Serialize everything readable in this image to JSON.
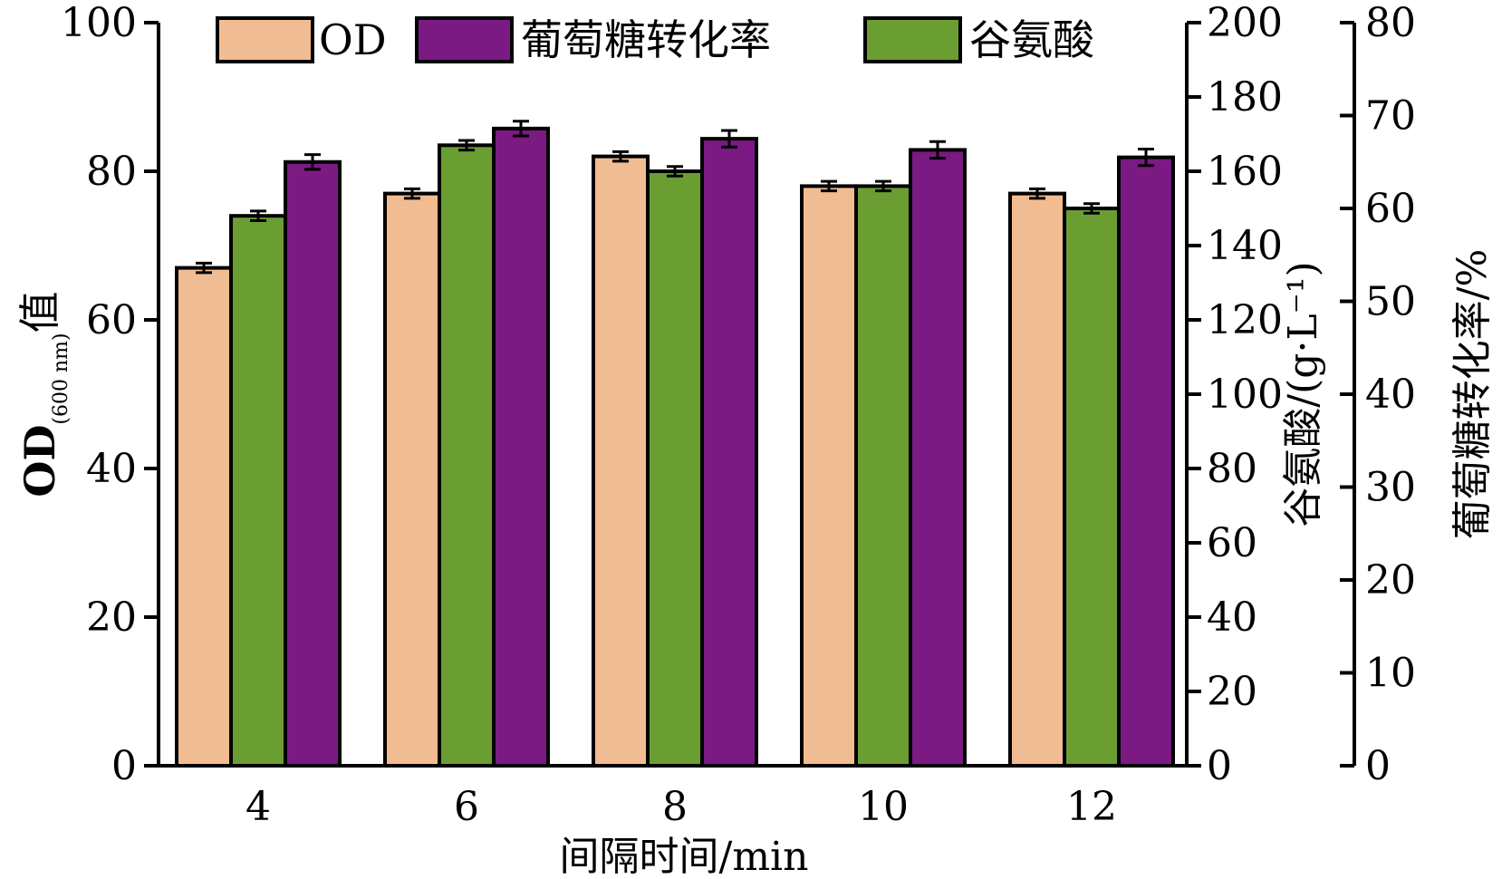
{
  "chart_data": {
    "type": "bar",
    "categories": [
      "4",
      "6",
      "8",
      "10",
      "12"
    ],
    "xlabel": "间隔时间/min",
    "y_left": {
      "label_main": "OD",
      "label_sub": "(600 nm)",
      "label_suffix": "值",
      "lim": [
        0,
        100
      ],
      "ticks": [
        0,
        20,
        40,
        60,
        80,
        100
      ]
    },
    "y_right1": {
      "label": "谷氨酸/(g·L⁻¹)",
      "lim": [
        0,
        200
      ],
      "ticks": [
        0,
        20,
        40,
        60,
        80,
        100,
        120,
        140,
        160,
        180,
        200
      ]
    },
    "y_right2": {
      "label": "葡萄糖转化率/%",
      "lim": [
        0,
        80
      ],
      "ticks": [
        0,
        10,
        20,
        30,
        40,
        50,
        60,
        70,
        80
      ]
    },
    "legend": [
      "OD",
      "葡萄糖转化率",
      "谷氨酸"
    ],
    "legend_position": "top",
    "series": [
      {
        "name": "OD",
        "axis": "y_left",
        "color": "#F2BC92",
        "values": [
          67,
          77,
          82,
          78,
          77
        ],
        "errors": [
          0.4,
          0.4,
          0.4,
          0.4,
          0.4
        ]
      },
      {
        "name": "谷氨酸",
        "axis": "y_right1",
        "color": "#6A9E32",
        "values": [
          148,
          167,
          160,
          156,
          150
        ],
        "errors": [
          0.8,
          0.8,
          0.8,
          0.8,
          0.8
        ]
      },
      {
        "name": "葡萄糖转化率",
        "axis": "y_right2",
        "color": "#7B1A82",
        "values": [
          65,
          68.6,
          67.5,
          66.3,
          65.5
        ],
        "errors": [
          0.6,
          0.6,
          0.7,
          0.7,
          0.7
        ]
      }
    ]
  }
}
